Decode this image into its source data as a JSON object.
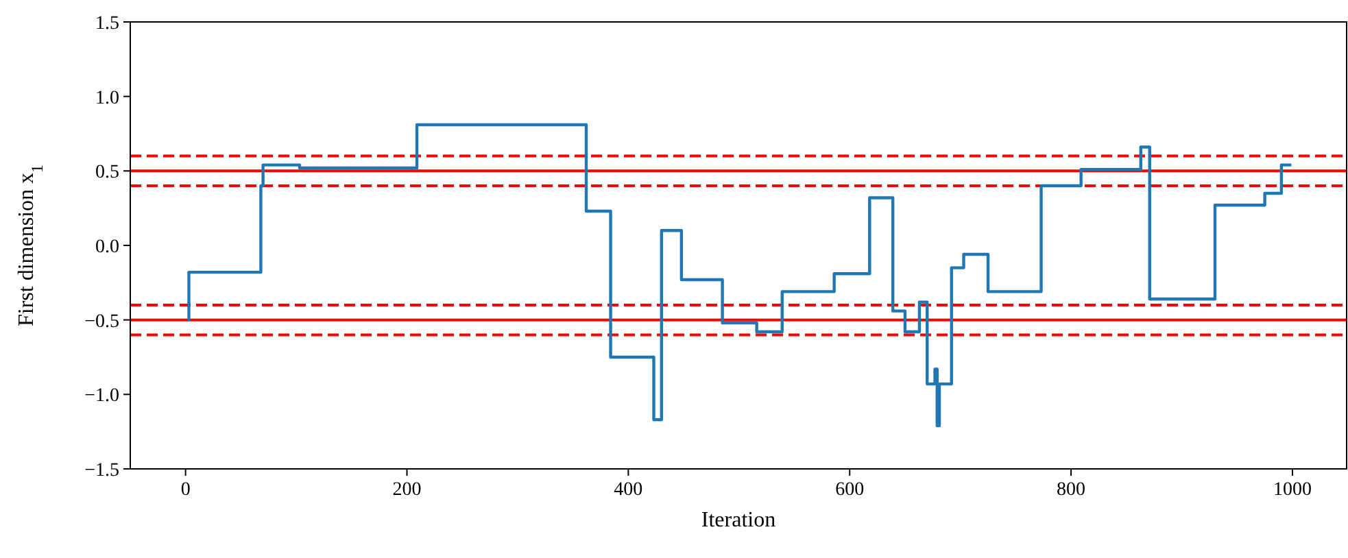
{
  "chart_data": {
    "type": "step",
    "xlabel": "Iteration",
    "ylabel": "First dimension x$_{1}$",
    "xlim": [
      -49.95,
      1048.95
    ],
    "xticks": [
      0,
      200,
      400,
      600,
      800,
      1000
    ],
    "ylim": [
      -1.5,
      1.5
    ],
    "yticks": [
      {
        "value": -1.5,
        "label": "−1.5"
      },
      {
        "value": -1,
        "label": "−1.0"
      },
      {
        "value": -0.5,
        "label": "−0.5"
      },
      {
        "value": 0,
        "label": "0.0"
      },
      {
        "value": 0.5,
        "label": "0.5"
      },
      {
        "value": 1,
        "label": "1.0"
      },
      {
        "value": 1.5,
        "label": "1.5"
      }
    ],
    "grid": false,
    "series": [
      {
        "color": "#1f77b4",
        "x": [
          2,
          3,
          68,
          70,
          103,
          209,
          362,
          384,
          423,
          430,
          448,
          485,
          516,
          539,
          586,
          618,
          639,
          650,
          663,
          670,
          677,
          679,
          681,
          692,
          703,
          725,
          773,
          809,
          863,
          871,
          930,
          975,
          990,
          999
        ],
        "values": [
          -0.5,
          -0.18,
          0.4,
          0.54,
          0.52,
          0.81,
          0.23,
          -0.75,
          -1.17,
          0.1,
          -0.23,
          -0.52,
          -0.58,
          -0.31,
          -0.19,
          0.32,
          -0.44,
          -0.58,
          -0.38,
          -0.93,
          -0.83,
          -1.21,
          -0.93,
          -0.15,
          -0.06,
          -0.31,
          0.4,
          0.51,
          0.66,
          -0.36,
          0.27,
          0.35,
          0.54,
          0.54
        ]
      }
    ],
    "ref_lines": [
      {
        "axis": "y",
        "value": 0.5,
        "color": "#ff0000",
        "line_style": "solid"
      },
      {
        "axis": "y",
        "value": 0.6,
        "color": "#ff0000",
        "line_style": "dashed"
      },
      {
        "axis": "y",
        "value": 0.4,
        "color": "#ff0000",
        "line_style": "dashed"
      },
      {
        "axis": "y",
        "value": -0.5,
        "color": "#ff0000",
        "line_style": "solid"
      },
      {
        "axis": "y",
        "value": -0.4,
        "color": "#ff0000",
        "line_style": "dashed"
      },
      {
        "axis": "y",
        "value": -0.6,
        "color": "#ff0000",
        "line_style": "dashed"
      }
    ]
  }
}
